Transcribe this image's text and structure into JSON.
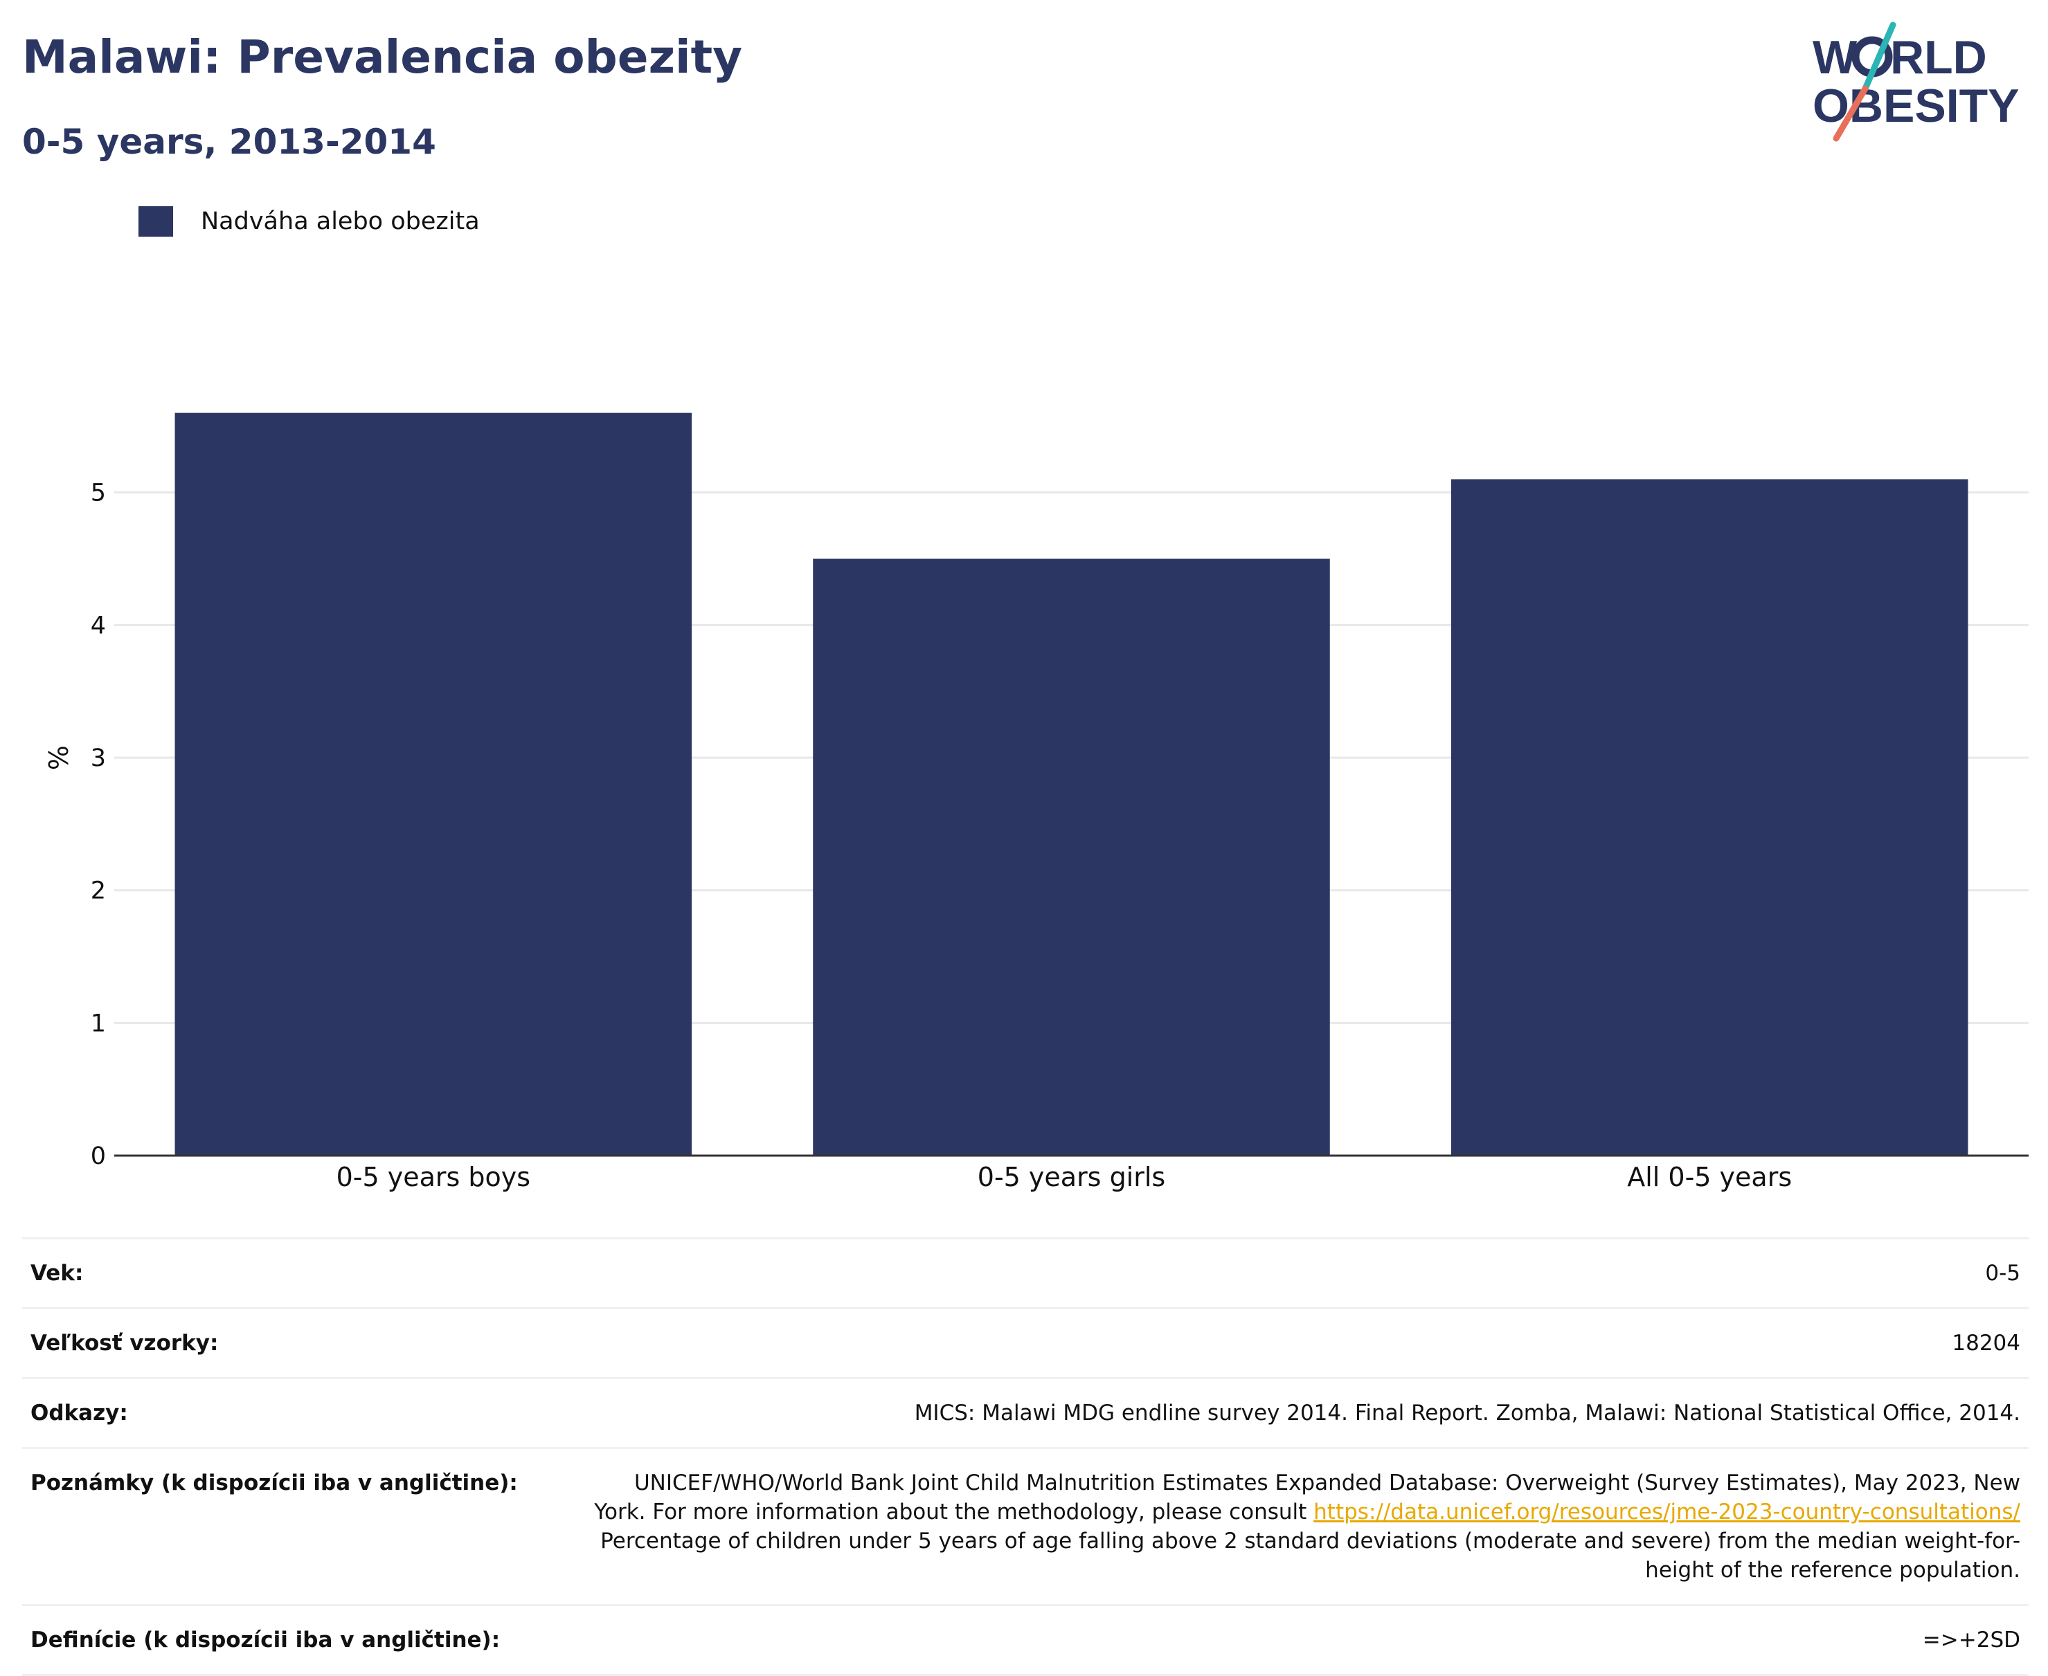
{
  "header": {
    "title": "Malawi: Prevalencia obezity",
    "subtitle": "0-5 years, 2013-2014",
    "logo_text": "WORLD OBESITY"
  },
  "legend": {
    "label": "Nadváha alebo obezita",
    "color": "#2b3762"
  },
  "chart_data": {
    "type": "bar",
    "categories": [
      "0-5 years boys",
      "0-5 years girls",
      "All 0-5 years"
    ],
    "series": [
      {
        "name": "Nadváha alebo obezita",
        "values": [
          5.6,
          4.5,
          5.1
        ],
        "color": "#2b3762"
      }
    ],
    "ylabel": "%",
    "xlabel": "",
    "ylim": [
      0,
      6
    ],
    "yticks": [
      0,
      1,
      2,
      3,
      4,
      5
    ],
    "grid": true,
    "legend_position": "top-left"
  },
  "info": {
    "age": {
      "label": "Vek:",
      "value": "0-5"
    },
    "sample": {
      "label": "Veľkosť vzorky:",
      "value": "18204"
    },
    "refs": {
      "label": "Odkazy:",
      "value": "MICS: Malawi MDG endline survey 2014. Final Report. Zomba, Malawi: National Statistical Office, 2014."
    },
    "notes": {
      "label": "Poznámky (k dispozícii iba v angličtine):",
      "text1": "UNICEF/WHO/World Bank Joint Child Malnutrition Estimates Expanded Database: Overweight (Survey Estimates), May 2023, New York. For more information about the methodology, please consult ",
      "link": "https://data.unicef.org/resources/jme-2023-country-consultations/",
      "text2": " Percentage of children under 5 years of age falling above 2 standard deviations (moderate and severe) from the median weight-for-height of the reference population."
    },
    "definitions": {
      "label": "Definície (k dispozícii iba v angličtine):",
      "value": "=>+2SD"
    }
  },
  "colors": {
    "bar": "#2b3762",
    "title": "#2b3762",
    "link": "#e8a800",
    "logo_teal": "#2bb5b5",
    "logo_coral": "#e8705a"
  }
}
